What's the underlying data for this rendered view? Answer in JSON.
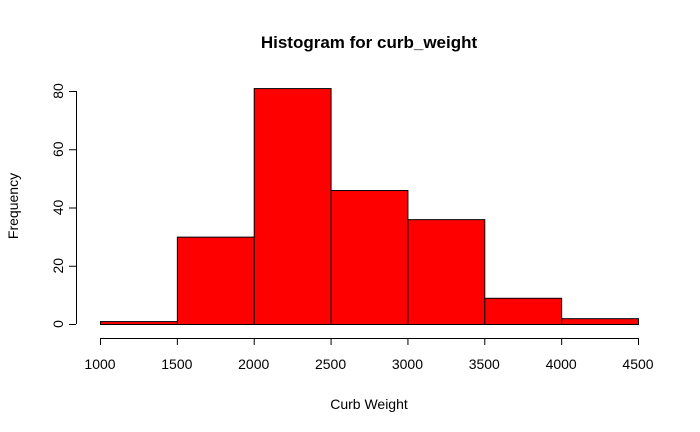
{
  "chart_data": {
    "type": "bar",
    "title": "Histogram for curb_weight",
    "xlabel": "Curb Weight",
    "ylabel": "Frequency",
    "bin_edges": [
      1000,
      1500,
      2000,
      2500,
      3000,
      3500,
      4000,
      4500
    ],
    "counts": [
      1,
      30,
      81,
      46,
      36,
      9,
      2
    ],
    "xlim": [
      1000,
      4500
    ],
    "ylim": [
      0,
      85
    ],
    "x_ticks": [
      1000,
      1500,
      2000,
      2500,
      3000,
      3500,
      4000,
      4500
    ],
    "y_ticks": [
      0,
      20,
      40,
      60,
      80
    ],
    "bar_color": "#ff0000",
    "border_color": "#000000",
    "grid": false,
    "legend": "none"
  }
}
